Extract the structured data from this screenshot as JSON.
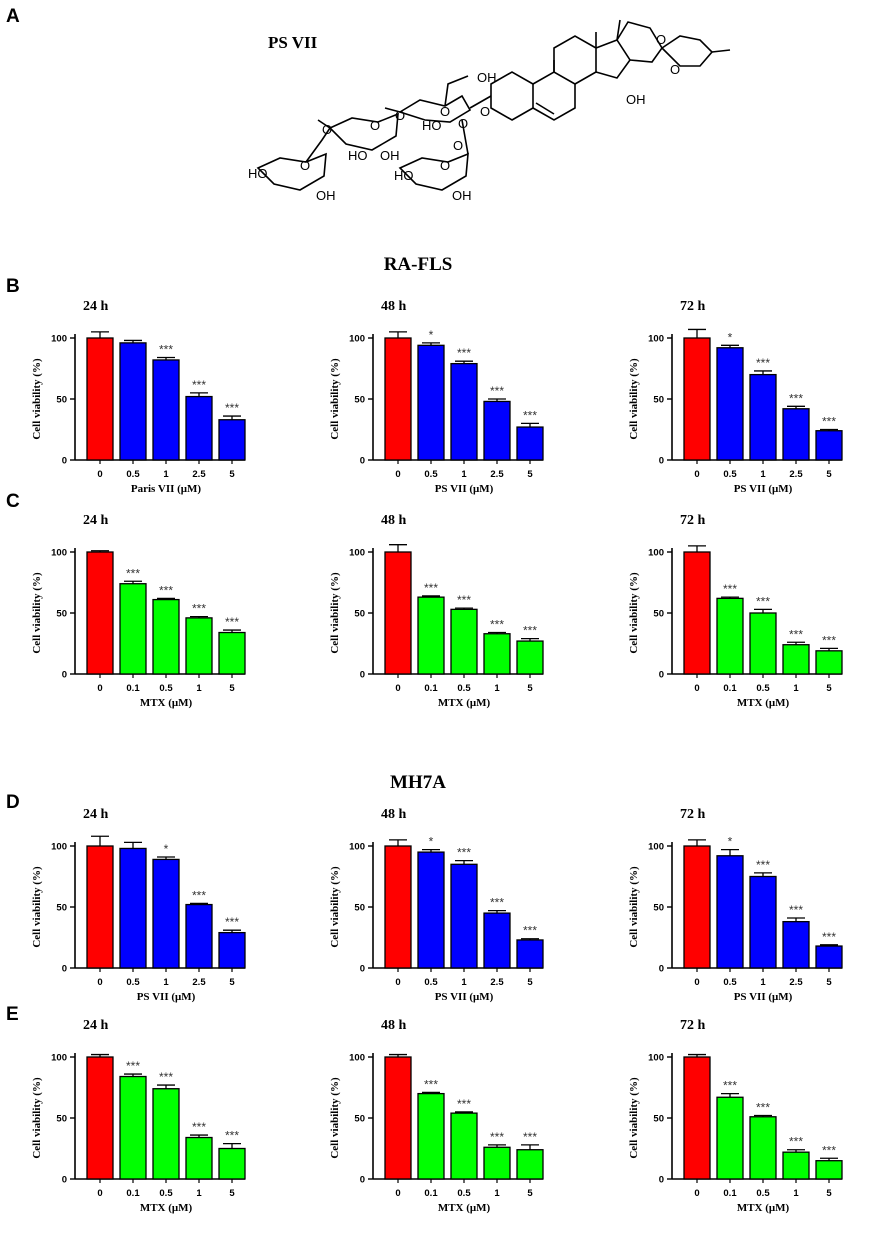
{
  "panel_labels": {
    "A": "A",
    "B": "B",
    "C": "C",
    "D": "D",
    "E": "E"
  },
  "compound_name": "PS VII",
  "structure_labels": [
    "OH",
    "O",
    "O",
    "O",
    "O",
    "O",
    "O",
    "O",
    "O",
    "O",
    "O",
    "O",
    "HO",
    "HO",
    "HO",
    "HO",
    "OH",
    "OH",
    "OH",
    "OH"
  ],
  "section_titles": {
    "rafls": "RA-FLS",
    "mh7a": "MH7A"
  },
  "colors": {
    "control": "#ff0000",
    "psvii": "#0000ff",
    "mtx": "#00ff00",
    "axis": "#000000"
  },
  "chart_data": [
    {
      "id": "B1",
      "type": "bar",
      "title": "24 h",
      "xlabel": "Paris VII (μM)",
      "ylabel": "Cell viability (%)",
      "ylim": [
        0,
        100
      ],
      "yticks": [
        0,
        50,
        100
      ],
      "categories": [
        "0",
        "0.5",
        "1",
        "2.5",
        "5"
      ],
      "values": [
        100,
        96,
        82,
        52,
        33
      ],
      "errors": [
        5,
        2,
        2,
        3,
        3
      ],
      "significance": [
        "",
        "",
        "***",
        "***",
        "***"
      ],
      "series_colors": [
        "control",
        "psvii",
        "psvii",
        "psvii",
        "psvii"
      ]
    },
    {
      "id": "B2",
      "type": "bar",
      "title": "48 h",
      "xlabel": "PS VII (μM)",
      "ylabel": "Cell viability (%)",
      "ylim": [
        0,
        100
      ],
      "yticks": [
        0,
        50,
        100
      ],
      "categories": [
        "0",
        "0.5",
        "1",
        "2.5",
        "5"
      ],
      "values": [
        100,
        94,
        79,
        48,
        27
      ],
      "errors": [
        5,
        2,
        2,
        2,
        3
      ],
      "significance": [
        "",
        "*",
        "***",
        "***",
        "***"
      ],
      "series_colors": [
        "control",
        "psvii",
        "psvii",
        "psvii",
        "psvii"
      ]
    },
    {
      "id": "B3",
      "type": "bar",
      "title": "72 h",
      "xlabel": "PS VII (μM)",
      "ylabel": "Cell viability (%)",
      "ylim": [
        0,
        100
      ],
      "yticks": [
        0,
        50,
        100
      ],
      "categories": [
        "0",
        "0.5",
        "1",
        "2.5",
        "5"
      ],
      "values": [
        100,
        92,
        70,
        42,
        24
      ],
      "errors": [
        7,
        2,
        3,
        2,
        1
      ],
      "significance": [
        "",
        "*",
        "***",
        "***",
        "***"
      ],
      "series_colors": [
        "control",
        "psvii",
        "psvii",
        "psvii",
        "psvii"
      ]
    },
    {
      "id": "C1",
      "type": "bar",
      "title": "24 h",
      "xlabel": "MTX (μM)",
      "ylabel": "Cell viability (%)",
      "ylim": [
        0,
        100
      ],
      "yticks": [
        0,
        50,
        100
      ],
      "categories": [
        "0",
        "0.1",
        "0.5",
        "1",
        "5"
      ],
      "values": [
        100,
        74,
        61,
        46,
        34
      ],
      "errors": [
        1,
        2,
        1,
        1,
        2
      ],
      "significance": [
        "",
        "***",
        "***",
        "***",
        "***"
      ],
      "series_colors": [
        "control",
        "mtx",
        "mtx",
        "mtx",
        "mtx"
      ]
    },
    {
      "id": "C2",
      "type": "bar",
      "title": "48 h",
      "xlabel": "MTX (μM)",
      "ylabel": "Cell viability (%)",
      "ylim": [
        0,
        100
      ],
      "yticks": [
        0,
        50,
        100
      ],
      "categories": [
        "0",
        "0.1",
        "0.5",
        "1",
        "5"
      ],
      "values": [
        100,
        63,
        53,
        33,
        27
      ],
      "errors": [
        6,
        1,
        1,
        1,
        2
      ],
      "significance": [
        "",
        "***",
        "***",
        "***",
        "***"
      ],
      "series_colors": [
        "control",
        "mtx",
        "mtx",
        "mtx",
        "mtx"
      ]
    },
    {
      "id": "C3",
      "type": "bar",
      "title": "72 h",
      "xlabel": "MTX (μM)",
      "ylabel": "Cell viability (%)",
      "ylim": [
        0,
        100
      ],
      "yticks": [
        0,
        50,
        100
      ],
      "categories": [
        "0",
        "0.1",
        "0.5",
        "1",
        "5"
      ],
      "values": [
        100,
        62,
        50,
        24,
        19
      ],
      "errors": [
        5,
        1,
        3,
        2,
        2
      ],
      "significance": [
        "",
        "***",
        "***",
        "***",
        "***"
      ],
      "series_colors": [
        "control",
        "mtx",
        "mtx",
        "mtx",
        "mtx"
      ]
    },
    {
      "id": "D1",
      "type": "bar",
      "title": "24 h",
      "xlabel": "PS VII (μM)",
      "ylabel": "Cell viability (%)",
      "ylim": [
        0,
        100
      ],
      "yticks": [
        0,
        50,
        100
      ],
      "categories": [
        "0",
        "0.5",
        "1",
        "2.5",
        "5"
      ],
      "values": [
        100,
        98,
        89,
        52,
        29
      ],
      "errors": [
        8,
        5,
        2,
        1,
        2
      ],
      "significance": [
        "",
        "",
        "*",
        "***",
        "***"
      ],
      "series_colors": [
        "control",
        "psvii",
        "psvii",
        "psvii",
        "psvii"
      ]
    },
    {
      "id": "D2",
      "type": "bar",
      "title": "48 h",
      "xlabel": "PS VII (μM)",
      "ylabel": "Cell viability (%)",
      "ylim": [
        0,
        100
      ],
      "yticks": [
        0,
        50,
        100
      ],
      "categories": [
        "0",
        "0.5",
        "1",
        "2.5",
        "5"
      ],
      "values": [
        100,
        95,
        85,
        45,
        23
      ],
      "errors": [
        5,
        2,
        3,
        2,
        1
      ],
      "significance": [
        "",
        "*",
        "***",
        "***",
        "***"
      ],
      "series_colors": [
        "control",
        "psvii",
        "psvii",
        "psvii",
        "psvii"
      ]
    },
    {
      "id": "D3",
      "type": "bar",
      "title": "72 h",
      "xlabel": "PS VII (μM)",
      "ylabel": "Cell viability (%)",
      "ylim": [
        0,
        100
      ],
      "yticks": [
        0,
        50,
        100
      ],
      "categories": [
        "0",
        "0.5",
        "1",
        "2.5",
        "5"
      ],
      "values": [
        100,
        92,
        75,
        38,
        18
      ],
      "errors": [
        5,
        5,
        3,
        3,
        1
      ],
      "significance": [
        "",
        "*",
        "***",
        "***",
        "***"
      ],
      "series_colors": [
        "control",
        "psvii",
        "psvii",
        "psvii",
        "psvii"
      ]
    },
    {
      "id": "E1",
      "type": "bar",
      "title": "24 h",
      "xlabel": "MTX (μM)",
      "ylabel": "Cell viability (%)",
      "ylim": [
        0,
        100
      ],
      "yticks": [
        0,
        50,
        100
      ],
      "categories": [
        "0",
        "0.1",
        "0.5",
        "1",
        "5"
      ],
      "values": [
        100,
        84,
        74,
        34,
        25
      ],
      "errors": [
        2,
        2,
        3,
        2,
        4
      ],
      "significance": [
        "",
        "***",
        "***",
        "***",
        "***"
      ],
      "series_colors": [
        "control",
        "mtx",
        "mtx",
        "mtx",
        "mtx"
      ]
    },
    {
      "id": "E2",
      "type": "bar",
      "title": "48 h",
      "xlabel": "MTX (μM)",
      "ylabel": "Cell viability (%)",
      "ylim": [
        0,
        100
      ],
      "yticks": [
        0,
        50,
        100
      ],
      "categories": [
        "0",
        "0.1",
        "0.5",
        "1",
        "5"
      ],
      "values": [
        100,
        70,
        54,
        26,
        24
      ],
      "errors": [
        2,
        1,
        1,
        2,
        4
      ],
      "significance": [
        "",
        "***",
        "***",
        "***",
        "***"
      ],
      "series_colors": [
        "control",
        "mtx",
        "mtx",
        "mtx",
        "mtx"
      ]
    },
    {
      "id": "E3",
      "type": "bar",
      "title": "72 h",
      "xlabel": "MTX (μM)",
      "ylabel": "Cell viability (%)",
      "ylim": [
        0,
        100
      ],
      "yticks": [
        0,
        50,
        100
      ],
      "categories": [
        "0",
        "0.1",
        "0.5",
        "1",
        "5"
      ],
      "values": [
        100,
        67,
        51,
        22,
        15
      ],
      "errors": [
        2,
        3,
        1,
        2,
        2
      ],
      "significance": [
        "",
        "***",
        "***",
        "***",
        "***"
      ],
      "series_colors": [
        "control",
        "mtx",
        "mtx",
        "mtx",
        "mtx"
      ]
    }
  ]
}
